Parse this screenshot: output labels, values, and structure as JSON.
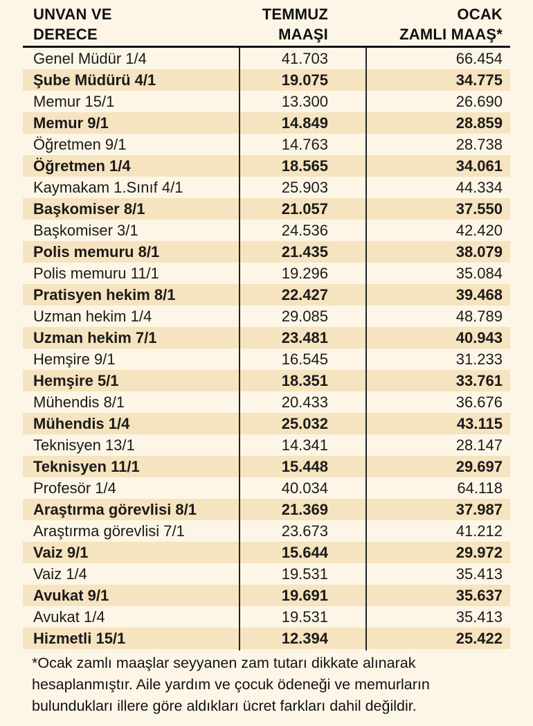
{
  "header": {
    "col1_line1": "UNVAN VE",
    "col1_line2": "DERECE",
    "col2_line1": "TEMMUZ",
    "col2_line2": "MAAŞI",
    "col3_line1": "OCAK",
    "col3_line2": "ZAMLI MAAŞ*"
  },
  "rows": [
    {
      "title": "Genel Müdür 1/4",
      "july": "41.703",
      "jan": "66.454"
    },
    {
      "title": "Şube Müdürü 4/1",
      "july": "19.075",
      "jan": "34.775"
    },
    {
      "title": "Memur 15/1",
      "july": "13.300",
      "jan": "26.690"
    },
    {
      "title": "Memur 9/1",
      "july": "14.849",
      "jan": "28.859"
    },
    {
      "title": "Öğretmen 9/1",
      "july": "14.763",
      "jan": "28.738"
    },
    {
      "title": "Öğretmen 1/4",
      "july": "18.565",
      "jan": "34.061"
    },
    {
      "title": "Kaymakam 1.Sınıf 4/1",
      "july": "25.903",
      "jan": "44.334"
    },
    {
      "title": "Başkomiser 8/1",
      "july": "21.057",
      "jan": "37.550"
    },
    {
      "title": "Başkomiser 3/1",
      "july": "24.536",
      "jan": "42.420"
    },
    {
      "title": "Polis memuru 8/1",
      "july": "21.435",
      "jan": "38.079"
    },
    {
      "title": "Polis memuru 11/1",
      "july": "19.296",
      "jan": "35.084"
    },
    {
      "title": "Pratisyen hekim 8/1",
      "july": "22.427",
      "jan": "39.468"
    },
    {
      "title": "Uzman hekim 1/4",
      "july": "29.085",
      "jan": "48.789"
    },
    {
      "title": "Uzman hekim 7/1",
      "july": "23.481",
      "jan": "40.943"
    },
    {
      "title": "Hemşire 9/1",
      "july": "16.545",
      "jan": "31.233"
    },
    {
      "title": "Hemşire 5/1",
      "july": "18.351",
      "jan": "33.761"
    },
    {
      "title": "Mühendis 8/1",
      "july": "20.433",
      "jan": "36.676"
    },
    {
      "title": "Mühendis 1/4",
      "july": "25.032",
      "jan": "43.115"
    },
    {
      "title": "Teknisyen 13/1",
      "july": "14.341",
      "jan": "28.147"
    },
    {
      "title": "Teknisyen 11/1",
      "july": "15.448",
      "jan": "29.697"
    },
    {
      "title": "Profesör 1/4",
      "july": "40.034",
      "jan": "64.118"
    },
    {
      "title": "Araştırma görevlisi 8/1",
      "july": "21.369",
      "jan": "37.987"
    },
    {
      "title": "Araştırma görevlisi 7/1",
      "july": "23.673",
      "jan": "41.212"
    },
    {
      "title": "Vaiz 9/1",
      "july": "15.644",
      "jan": "29.972"
    },
    {
      "title": "Vaiz 1/4",
      "july": "19.531",
      "jan": "35.413"
    },
    {
      "title": "Avukat 9/1",
      "july": "19.691",
      "jan": "35.637"
    },
    {
      "title": "Avukat 1/4",
      "july": "19.531",
      "jan": "35.413"
    },
    {
      "title": "Hizmetli 15/1",
      "july": "12.394",
      "jan": "25.422"
    }
  ],
  "footnote": {
    "line1": "*Ocak zamlı maaşlar seyyanen zam tutarı dikkate alınarak",
    "line2": "hesaplanmıştır. Aile yardım ve çocuk ödeneği ve memurların",
    "line3": "bulundukları illere göre aldıkları ücret farkları dahil değildir."
  },
  "colors": {
    "background": "#fdf6e6",
    "shaded_row": "#f6e3bf",
    "text": "#1a1a1a"
  }
}
